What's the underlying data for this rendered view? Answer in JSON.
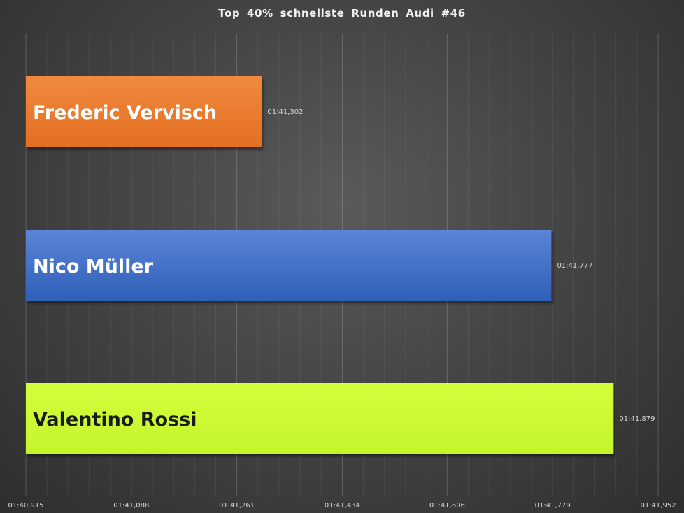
{
  "chart_data": {
    "type": "bar",
    "orientation": "horizontal",
    "title": "Top  40% schnellste  Runden  Audi  #46",
    "xlabel": "",
    "ylabel": "",
    "unit": "seconds (lap time 01:41,xxx)",
    "xlim": [
      100.915,
      101.952
    ],
    "grid": true,
    "legend": "none",
    "ticks": [
      {
        "value": 100.915,
        "label": "01:40,915"
      },
      {
        "value": 101.088,
        "label": "01:41,088"
      },
      {
        "value": 101.261,
        "label": "01:41,261"
      },
      {
        "value": 101.434,
        "label": "01:41,434"
      },
      {
        "value": 101.606,
        "label": "01:41,606"
      },
      {
        "value": 101.779,
        "label": "01:41,779"
      },
      {
        "value": 101.952,
        "label": "01:41,952"
      }
    ],
    "bars": [
      {
        "name": "Frederic Vervisch",
        "value": 101.302,
        "label": "01:41,302",
        "color": "#ed7d31",
        "text_color": "#ffffff"
      },
      {
        "name": "Nico Müller",
        "value": 101.777,
        "label": "01:41,777",
        "color": "#4472c4",
        "text_color": "#ffffff"
      },
      {
        "name": "Valentino Rossi",
        "value": 101.879,
        "label": "01:41,879",
        "color": "#ccff33",
        "text_color": "#1a1a1a"
      }
    ]
  }
}
